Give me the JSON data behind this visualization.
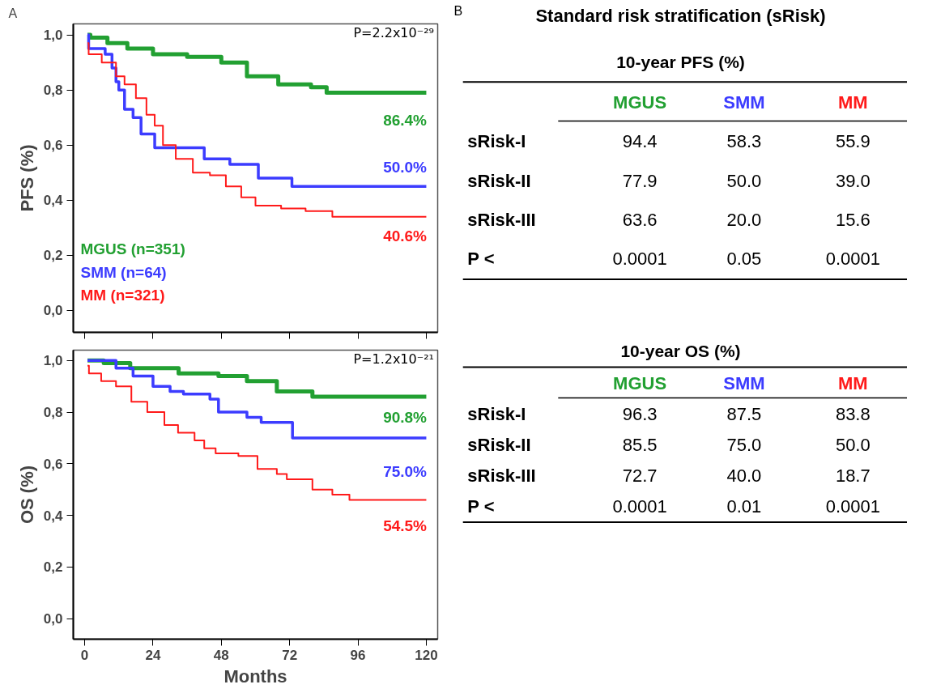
{
  "chart_data": [
    {
      "type": "step",
      "title": "A",
      "ylabel": "PFS (%)",
      "xlim": [
        -4,
        124
      ],
      "ylim": [
        -0.08,
        1.04
      ],
      "xticks": [
        0,
        24,
        48,
        72,
        96,
        120
      ],
      "yticks": [
        {
          "value": 0,
          "label": "0,0"
        },
        {
          "value": 0.2,
          "label": "0,2"
        },
        {
          "value": 0.4,
          "label": "0,4"
        },
        {
          "value": 0.6,
          "label": "0,6"
        },
        {
          "value": 0.8,
          "label": "0,8"
        },
        {
          "value": 1.0,
          "label": "1,0"
        }
      ],
      "tick_labels": "y",
      "grid": false,
      "legend": "bottom left",
      "annotations": [
        "P=2.2x10⁻²⁹",
        "86.4%",
        "50.0%",
        "40.6%"
      ],
      "series": [
        {
          "name": "MGUS (n=351)",
          "color": "#22a032",
          "x": [
            1,
            2,
            8,
            15,
            24,
            36,
            48,
            57,
            68,
            79.5,
            85,
            120
          ],
          "values": [
            1.0,
            0.99,
            0.97,
            0.95,
            0.93,
            0.92,
            0.9,
            0.85,
            0.82,
            0.81,
            0.79,
            0.79
          ]
        },
        {
          "name": "SMM (n=64)",
          "color": "#3c3cff",
          "x": [
            1,
            1.4,
            7.2,
            9.6,
            11,
            12,
            14,
            17,
            19.8,
            24.6,
            42,
            51,
            61,
            72.8,
            120
          ],
          "values": [
            1.0,
            0.95,
            0.93,
            0.88,
            0.83,
            0.8,
            0.73,
            0.7,
            0.64,
            0.59,
            0.55,
            0.53,
            0.48,
            0.45,
            0.45
          ]
        },
        {
          "name": "MM (n=321)",
          "color": "#ff1a1a",
          "x": [
            1,
            1.4,
            6,
            11,
            14,
            18,
            21.7,
            24.6,
            27.5,
            32,
            38,
            44,
            49.6,
            55,
            60,
            69,
            77.6,
            87,
            120
          ],
          "values": [
            0.97,
            0.93,
            0.9,
            0.85,
            0.82,
            0.77,
            0.71,
            0.67,
            0.6,
            0.55,
            0.5,
            0.49,
            0.45,
            0.41,
            0.38,
            0.37,
            0.36,
            0.34,
            0.34
          ]
        }
      ]
    },
    {
      "type": "step",
      "ylabel": "OS (%)",
      "xlabel": "Months",
      "xlim": [
        -4,
        124
      ],
      "ylim": [
        -0.08,
        1.04
      ],
      "xticks": [
        0,
        24,
        48,
        72,
        96,
        120
      ],
      "yticks": [
        {
          "value": 0,
          "label": "0,0"
        },
        {
          "value": 0.2,
          "label": "0,2"
        },
        {
          "value": 0.4,
          "label": "0,4"
        },
        {
          "value": 0.6,
          "label": "0,6"
        },
        {
          "value": 0.8,
          "label": "0,8"
        },
        {
          "value": 1.0,
          "label": "1,0"
        }
      ],
      "grid": false,
      "annotations": [
        "P=1.2x10⁻²¹",
        "90.8%",
        "75.0%",
        "54.5%"
      ],
      "series": [
        {
          "color": "#22a032",
          "x": [
            1,
            6.7,
            16,
            33,
            47,
            57,
            67.5,
            80,
            120
          ],
          "values": [
            1.0,
            0.99,
            0.97,
            0.95,
            0.94,
            0.92,
            0.88,
            0.86,
            0.86
          ]
        },
        {
          "color": "#3c3cff",
          "x": [
            1,
            11,
            17,
            24,
            30,
            34.7,
            44,
            47,
            57,
            62,
            73,
            120
          ],
          "values": [
            1.0,
            0.97,
            0.94,
            0.9,
            0.88,
            0.87,
            0.85,
            0.8,
            0.78,
            0.76,
            0.7,
            0.7
          ]
        },
        {
          "color": "#ff1a1a",
          "x": [
            1,
            1.5,
            5.8,
            11,
            16.4,
            22,
            28,
            32.8,
            38.6,
            42,
            46,
            54,
            60.7,
            67.5,
            71,
            77,
            80,
            87,
            93,
            120
          ],
          "values": [
            0.98,
            0.95,
            0.92,
            0.9,
            0.84,
            0.8,
            0.75,
            0.72,
            0.69,
            0.66,
            0.64,
            0.63,
            0.58,
            0.56,
            0.54,
            0.54,
            0.5,
            0.48,
            0.46,
            0.46
          ]
        }
      ]
    },
    {
      "type": "other",
      "title": "Standard risk stratification (sRisk)",
      "subtitle": "10-year PFS (%)",
      "annotations": [
        "B"
      ],
      "categories": [
        "MGUS",
        "SMM",
        "MM"
      ],
      "y_categories": [
        "sRisk-I",
        "sRisk-II",
        "sRisk-III",
        "P <"
      ],
      "cell_labels": [
        [
          "94.4",
          "58.3",
          "55.9"
        ],
        [
          "77.9",
          "50.0",
          "39.0"
        ],
        [
          "63.6",
          "20.0",
          "15.6"
        ],
        [
          "0.0001",
          "0.05",
          "0.0001"
        ]
      ]
    },
    {
      "type": "other",
      "subtitle": "10-year OS (%)",
      "categories": [
        "MGUS",
        "SMM",
        "MM"
      ],
      "y_categories": [
        "sRisk-I",
        "sRisk-II",
        "sRisk-III",
        "P <"
      ],
      "cell_labels": [
        [
          "96.3",
          "87.5",
          "83.8"
        ],
        [
          "85.5",
          "75.0",
          "50.0"
        ],
        [
          "72.7",
          "40.0",
          "18.7"
        ],
        [
          "0.0001",
          "0.01",
          "0.0001"
        ]
      ]
    }
  ]
}
